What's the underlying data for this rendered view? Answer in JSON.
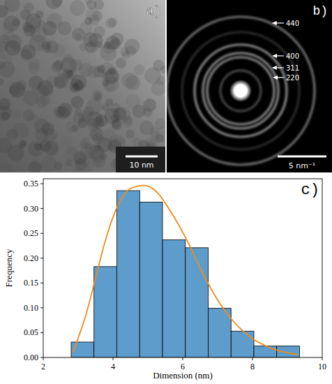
{
  "figure": {
    "panel_a": {
      "letter": "a)",
      "scale_bar": "10 nm"
    },
    "panel_b": {
      "letter": "b)",
      "scale_bar": "5 nm⁻¹",
      "rings": [
        "440",
        "400",
        "311",
        "220"
      ]
    }
  },
  "chart_data": {
    "type": "histogram",
    "panel_label": "c)",
    "xlabel": "Dimension (nm)",
    "ylabel": "Frequency",
    "bins": [
      2.8,
      3.455,
      4.11,
      4.765,
      5.42,
      6.075,
      6.73,
      7.385,
      8.04,
      8.695,
      9.35
    ],
    "values": [
      0.031,
      0.183,
      0.336,
      0.313,
      0.237,
      0.221,
      0.099,
      0.053,
      0.023,
      0.023
    ],
    "color": "#5e9dcb",
    "curve": {
      "type": "line",
      "color": "#ee8a1c",
      "x": [
        2.85,
        3.2,
        3.5,
        3.8,
        4.1,
        4.4,
        4.7,
        5.0,
        5.3,
        5.6,
        5.9,
        6.2,
        6.5,
        6.8,
        7.1,
        7.4,
        7.7,
        8.0,
        8.3,
        8.6,
        8.9,
        9.3
      ],
      "values": [
        0.01,
        0.08,
        0.16,
        0.24,
        0.3,
        0.335,
        0.345,
        0.345,
        0.33,
        0.3,
        0.265,
        0.225,
        0.18,
        0.14,
        0.105,
        0.077,
        0.055,
        0.038,
        0.026,
        0.017,
        0.011,
        0.006
      ]
    },
    "xlim": [
      2,
      10
    ],
    "xticks": [
      2,
      4,
      6,
      8,
      10
    ],
    "ylim": [
      0,
      0.36
    ],
    "yticks": [
      {
        "value": 0,
        "label": "0.00"
      },
      {
        "value": 0.05,
        "label": "0.05"
      },
      {
        "value": 0.1,
        "label": "0.10"
      },
      {
        "value": 0.15,
        "label": "0.15"
      },
      {
        "value": 0.2,
        "label": "0.20"
      },
      {
        "value": 0.25,
        "label": "0.25"
      },
      {
        "value": 0.3,
        "label": "0.30"
      },
      {
        "value": 0.35,
        "label": "0.35"
      }
    ],
    "grid": false
  }
}
